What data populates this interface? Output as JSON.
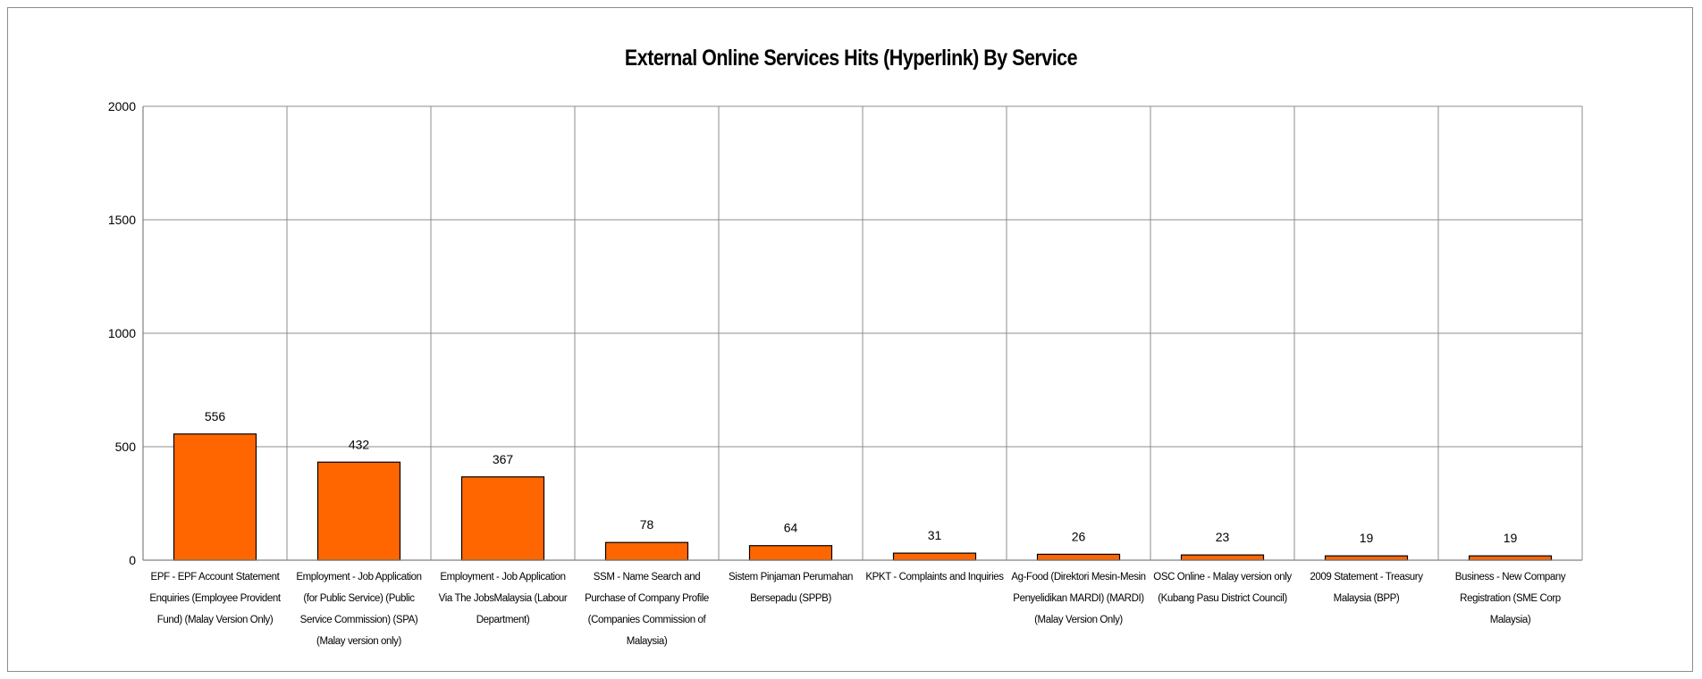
{
  "chart_data": {
    "type": "bar",
    "title": "External Online Services Hits (Hyperlink) By Service",
    "xlabel": "",
    "ylabel": "",
    "ylim": [
      0,
      2000
    ],
    "yticks": [
      0,
      500,
      1000,
      1500,
      2000
    ],
    "grid": true,
    "legend": "none",
    "bar_color": "#ff6600",
    "categories": [
      "EPF - EPF Account Statement Enquiries (Employee Provident Fund) (Malay Version Only)",
      "Employment - Job Application (for Public Service) (Public Service Commission) (SPA) (Malay version only)",
      "Employment - Job Application Via The JobsMalaysia (Labour Department)",
      "SSM - Name Search and Purchase of Company Profile (Companies Commission of Malaysia)",
      "Sistem Pinjaman Perumahan Bersepadu (SPPB)",
      "KPKT - Complaints and Inquiries",
      "Ag-Food (Direktori Mesin-Mesin Penyelidikan MARDI) (MARDI) (Malay Version Only)",
      "OSC Online - Malay version only (Kubang Pasu District Council)",
      "2009 Statement - Treasury Malaysia (BPP)",
      "Business - New Company Registration (SME Corp Malaysia)"
    ],
    "values": [
      556,
      432,
      367,
      78,
      64,
      31,
      26,
      23,
      19,
      19
    ]
  }
}
